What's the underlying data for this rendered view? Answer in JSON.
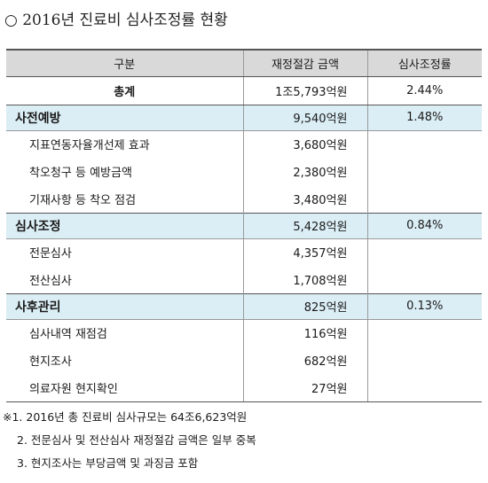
{
  "title": "○ 2016년 진료비 심사조정률 현황",
  "table": {
    "headers": [
      "구분",
      "재정절감 금액",
      "심사조정률"
    ],
    "total": {
      "name": "총계",
      "amount": "1조5,793억원",
      "rate": "2.44%"
    },
    "groups": [
      {
        "name": "사전예방",
        "amount": "9,540억원",
        "rate": "1.48%",
        "items": [
          {
            "name": "지표연동자율개선제 효과",
            "amount": "3,680억원"
          },
          {
            "name": "착오청구 등 예방금액",
            "amount": "2,380억원"
          },
          {
            "name": "기재사항 등 착오 점검",
            "amount": "3,480억원"
          }
        ]
      },
      {
        "name": "심사조정",
        "amount": "5,428억원",
        "rate": "0.84%",
        "items": [
          {
            "name": "전문심사",
            "amount": "4,357억원"
          },
          {
            "name": "전산심사",
            "amount": "1,708억원"
          }
        ]
      },
      {
        "name": "사후관리",
        "amount": "825억원",
        "rate": "0.13%",
        "items": [
          {
            "name": "심사내역 재점검",
            "amount": "116억원"
          },
          {
            "name": "현지조사",
            "amount": "682억원"
          },
          {
            "name": "의료자원 현지확인",
            "amount": "27억원"
          }
        ]
      }
    ]
  },
  "notes": [
    "※1. 2016년 총 진료비 심사규모는 64조6,623억원",
    "2. 전문심사 및 전산심사 재정절감 금액은 일부 중복",
    "3. 현지조사는 부당금액 및 과징금 포함"
  ]
}
